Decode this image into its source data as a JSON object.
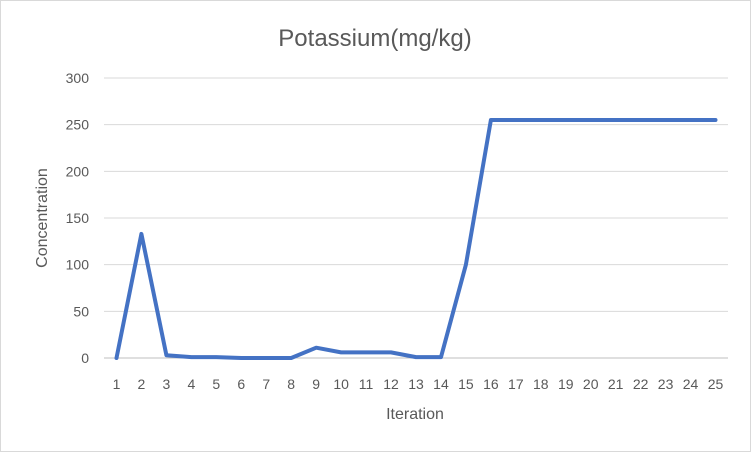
{
  "chart_data": {
    "type": "line",
    "title": "Potassium(mg/kg)",
    "xlabel": "Iteration",
    "ylabel": "Concentration",
    "categories": [
      "1",
      "2",
      "3",
      "4",
      "5",
      "6",
      "7",
      "8",
      "9",
      "10",
      "11",
      "12",
      "13",
      "14",
      "15",
      "16",
      "17",
      "18",
      "19",
      "20",
      "21",
      "22",
      "23",
      "24",
      "25"
    ],
    "series": [
      {
        "values": [
          0,
          133,
          3,
          1,
          1,
          0,
          0,
          0,
          11,
          6,
          6,
          6,
          1,
          1,
          100,
          255,
          255,
          255,
          255,
          255,
          255,
          255,
          255,
          255,
          255
        ],
        "color": "#4472C4"
      }
    ],
    "yticks": [
      "0",
      "50",
      "100",
      "150",
      "200",
      "250",
      "300"
    ],
    "ylim": [
      0,
      300
    ],
    "grid": true,
    "legend": "none"
  }
}
